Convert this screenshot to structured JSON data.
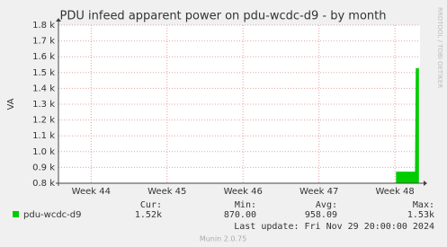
{
  "chart_data": {
    "type": "area",
    "title": "PDU infeed apparent power on pdu-wcdc-d9 - by month",
    "y_label": "VA",
    "side_text": "RRDTOOL / TOBI OETIKER",
    "x": [
      48.02,
      48.27,
      48.28,
      48.31
    ],
    "series": [
      {
        "name": "pdu-wcdc-d9",
        "color": "#00cc00",
        "values": [
          870,
          870,
          1525,
          1525
        ]
      }
    ],
    "xlim": [
      43.57,
      48.33
    ],
    "xticks": [
      {
        "value": 44,
        "label": "Week 44"
      },
      {
        "value": 45,
        "label": "Week 45"
      },
      {
        "value": 46,
        "label": "Week 46"
      },
      {
        "value": 47,
        "label": "Week 47"
      },
      {
        "value": 48,
        "label": "Week 48"
      }
    ],
    "ylim": [
      800,
      1800
    ],
    "yticks": [
      {
        "value": 800,
        "label": "0.8 k"
      },
      {
        "value": 900,
        "label": "0.9 k"
      },
      {
        "value": 1000,
        "label": "1.0 k"
      },
      {
        "value": 1100,
        "label": "1.1 k"
      },
      {
        "value": 1200,
        "label": "1.2 k"
      },
      {
        "value": 1300,
        "label": "1.3 k"
      },
      {
        "value": 1400,
        "label": "1.4 k"
      },
      {
        "value": 1500,
        "label": "1.5 k"
      },
      {
        "value": 1600,
        "label": "1.6 k"
      },
      {
        "value": 1700,
        "label": "1.7 k"
      },
      {
        "value": 1800,
        "label": "1.8 k"
      }
    ],
    "grid": true,
    "legend_stats": {
      "headers": [
        "Cur:",
        "Min:",
        "Avg:",
        "Max:"
      ],
      "values": [
        "1.52k",
        "870.00",
        "958.09",
        "1.53k"
      ]
    },
    "last_update": "Last update: Fri Nov 29 20:00:00 2024",
    "footer": "Munin 2.0.75"
  }
}
